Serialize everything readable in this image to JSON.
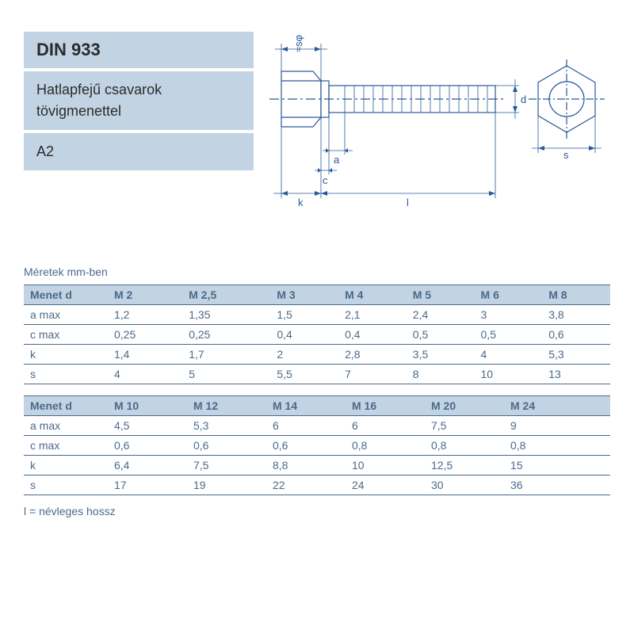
{
  "header": {
    "title": "DIN 933",
    "subtitle": "Hatlapfejű csavarok tövigmenettel",
    "grade": "A2"
  },
  "diagram": {
    "stroke": "#2a5a9a",
    "dim_labels": {
      "k": "k",
      "c": "c",
      "a": "a",
      "l": "l",
      "d": "d",
      "s": "s",
      "phi": "≈sφ"
    }
  },
  "table": {
    "units_label": "Méretek mm-ben",
    "row_header": "Menet d",
    "param_labels": [
      "a max",
      "c max",
      "k",
      "s"
    ],
    "block1": {
      "columns": [
        "M 2",
        "M 2,5",
        "M 3",
        "M 4",
        "M 5",
        "M 6",
        "M 8"
      ],
      "rows": [
        [
          "1,2",
          "1,35",
          "1,5",
          "2,1",
          "2,4",
          "3",
          "3,8"
        ],
        [
          "0,25",
          "0,25",
          "0,4",
          "0,4",
          "0,5",
          "0,5",
          "0,6"
        ],
        [
          "1,4",
          "1,7",
          "2",
          "2,8",
          "3,5",
          "4",
          "5,3"
        ],
        [
          "4",
          "5",
          "5,5",
          "7",
          "8",
          "10",
          "13"
        ]
      ]
    },
    "block2": {
      "columns": [
        "M 10",
        "M 12",
        "M 14",
        "M 16",
        "M 20",
        "M 24"
      ],
      "rows": [
        [
          "4,5",
          "5,3",
          "6",
          "6",
          "7,5",
          "9"
        ],
        [
          "0,6",
          "0,6",
          "0,6",
          "0,8",
          "0,8",
          "0,8"
        ],
        [
          "6,4",
          "7,5",
          "8,8",
          "10",
          "12,5",
          "15"
        ],
        [
          "17",
          "19",
          "22",
          "24",
          "30",
          "36"
        ]
      ]
    },
    "footnote": "l = névleges hossz"
  },
  "colors": {
    "panel_bg": "#c2d4e4",
    "text": "#4a6a8a",
    "line": "#4a6a8a",
    "diagram_stroke": "#2a5a9a"
  }
}
